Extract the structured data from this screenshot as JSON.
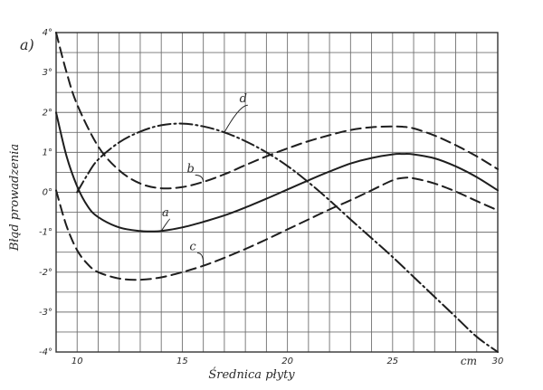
{
  "chart_data": {
    "type": "line",
    "panel_label": "a)",
    "xlabel": "Średnica płyty",
    "x_unit": "cm",
    "ylabel": "Błąd prowadzenia",
    "xlim": [
      9,
      30
    ],
    "ylim": [
      -4,
      4
    ],
    "x_ticks": [
      {
        "value": 10,
        "label": "10"
      },
      {
        "value": 15,
        "label": "15"
      },
      {
        "value": 20,
        "label": "20"
      },
      {
        "value": 25,
        "label": "25"
      },
      {
        "value": 30,
        "label": "30"
      }
    ],
    "y_ticks": [
      {
        "value": 4,
        "label": "4°"
      },
      {
        "value": 3,
        "label": "3°"
      },
      {
        "value": 2,
        "label": "2°"
      },
      {
        "value": 1,
        "label": "1°"
      },
      {
        "value": 0,
        "label": "0°"
      },
      {
        "value": -1,
        "label": "-1°"
      },
      {
        "value": -2,
        "label": "-2°"
      },
      {
        "value": -3,
        "label": "-3°"
      },
      {
        "value": -4,
        "label": "-4°"
      }
    ],
    "grid": true,
    "series": [
      {
        "name": "a",
        "style": "solid",
        "x": [
          9.0,
          9.5,
          10,
          10.5,
          11,
          12,
          13,
          13.5,
          14,
          15,
          16,
          17,
          18,
          19,
          20,
          21,
          22,
          23,
          24,
          25,
          25.5,
          26,
          27,
          28,
          29,
          30
        ],
        "y": [
          2.0,
          0.9,
          0.15,
          -0.35,
          -0.62,
          -0.88,
          -0.97,
          -0.98,
          -0.97,
          -0.88,
          -0.74,
          -0.58,
          -0.38,
          -0.16,
          0.07,
          0.3,
          0.52,
          0.72,
          0.86,
          0.95,
          0.96,
          0.95,
          0.85,
          0.65,
          0.38,
          0.05
        ],
        "label_at": {
          "x": 14.2,
          "y": -0.6
        }
      },
      {
        "name": "b",
        "style": "dashed",
        "x": [
          9.0,
          9.5,
          10,
          11,
          12,
          13,
          14,
          15,
          16,
          17,
          18,
          19,
          20,
          21,
          22,
          23,
          24,
          25,
          25.5,
          26,
          27,
          28,
          29,
          30
        ],
        "y": [
          4.0,
          3.0,
          2.2,
          1.15,
          0.55,
          0.22,
          0.1,
          0.13,
          0.26,
          0.45,
          0.68,
          0.9,
          1.1,
          1.28,
          1.43,
          1.56,
          1.63,
          1.65,
          1.64,
          1.6,
          1.42,
          1.18,
          0.9,
          0.58
        ],
        "label_at": {
          "x": 15.4,
          "y": 0.5
        }
      },
      {
        "name": "c",
        "style": "dashed",
        "x": [
          9.0,
          9.5,
          10,
          10.5,
          11,
          12,
          13,
          14,
          15,
          16,
          17,
          18,
          19,
          20,
          21,
          22,
          23,
          24,
          25,
          25.5,
          26,
          27,
          28,
          29,
          30
        ],
        "y": [
          0.05,
          -0.85,
          -1.45,
          -1.8,
          -2.0,
          -2.16,
          -2.19,
          -2.13,
          -2.0,
          -1.84,
          -1.64,
          -1.42,
          -1.18,
          -0.93,
          -0.68,
          -0.43,
          -0.2,
          0.05,
          0.3,
          0.36,
          0.35,
          0.22,
          0.02,
          -0.22,
          -0.45
        ],
        "label_at": {
          "x": 15.5,
          "y": -1.45
        }
      },
      {
        "name": "d",
        "style": "dash-dot",
        "x": [
          10,
          10.5,
          11,
          12,
          13,
          14,
          15,
          16,
          17,
          18,
          19,
          20,
          21,
          22,
          23,
          24,
          25,
          26,
          27,
          28,
          29,
          30
        ],
        "y": [
          0.0,
          0.45,
          0.82,
          1.25,
          1.52,
          1.68,
          1.72,
          1.65,
          1.5,
          1.28,
          1.0,
          0.66,
          0.25,
          -0.2,
          -0.68,
          -1.15,
          -1.62,
          -2.12,
          -2.62,
          -3.12,
          -3.62,
          -4.0
        ],
        "label_at": {
          "x": 17.9,
          "y": 2.25
        }
      }
    ]
  }
}
